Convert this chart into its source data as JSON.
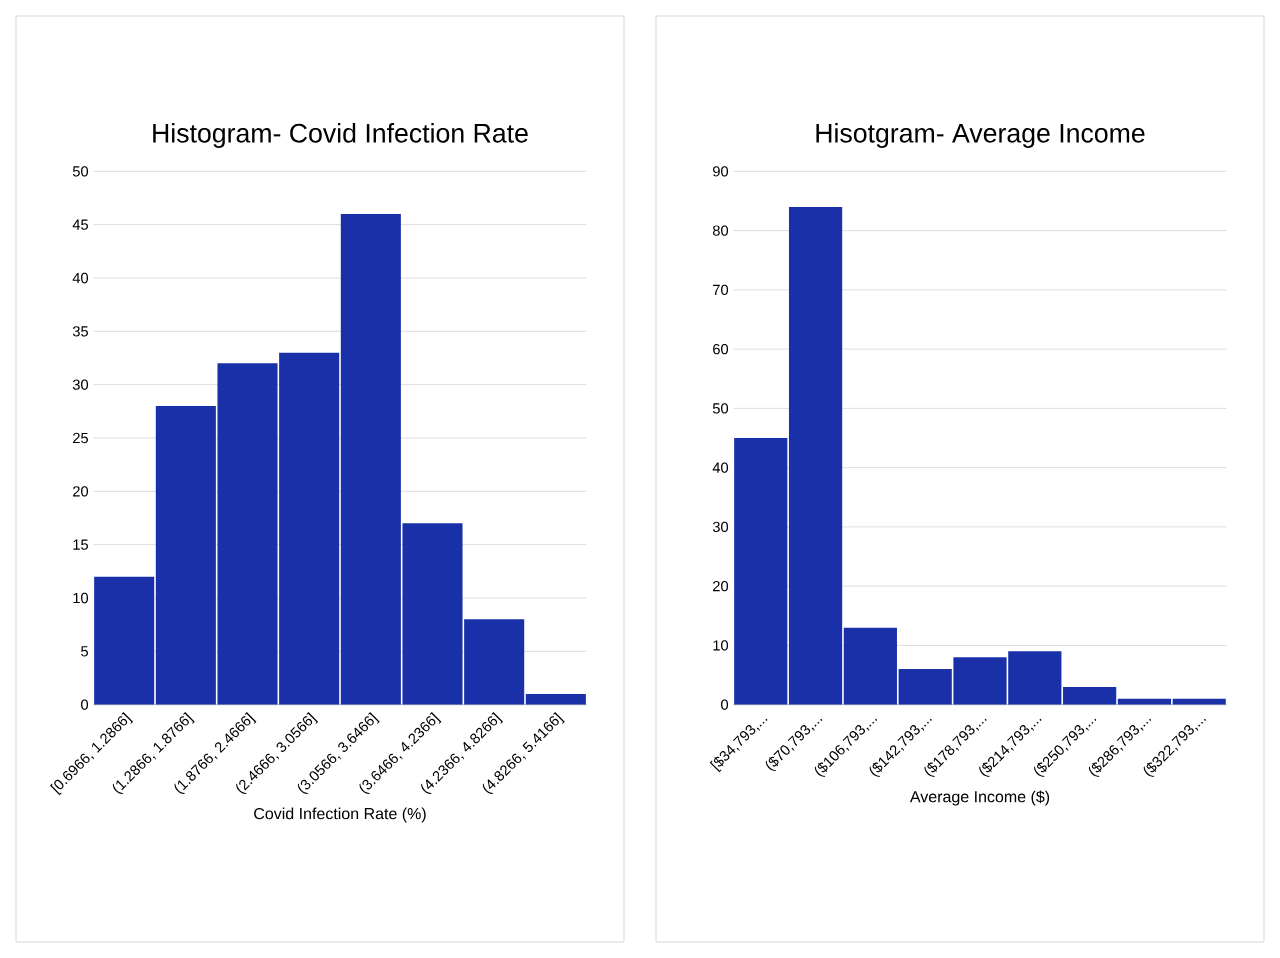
{
  "chart_data": [
    {
      "type": "bar",
      "title": "Histogram- Covid Infection Rate",
      "xlabel": "Covid Infection Rate (%)",
      "categories": [
        "[0.6966, 1.2866]",
        "(1.2866, 1.8766]",
        "(1.8766, 2.4666]",
        "(2.4666, 3.0566]",
        "(3.0566, 3.6466]",
        "(3.6466, 4.2366]",
        "(4.2366, 4.8266]",
        "(4.8266, 5.4166]"
      ],
      "values": [
        12,
        28,
        32,
        33,
        46,
        17,
        8,
        1
      ],
      "color": "#1a30a8",
      "ylim": [
        0,
        50
      ],
      "yticks": [
        0,
        5,
        10,
        15,
        20,
        25,
        30,
        35,
        40,
        45,
        50
      ],
      "grid": "y"
    },
    {
      "type": "bar",
      "title": "Hisotgram- Average Income",
      "xlabel": "Average Income ($)",
      "categories": [
        "[$34,793,...",
        "($70,793,...",
        "($106,793,...",
        "($142,793,...",
        "($178,793,...",
        "($214,793,...",
        "($250,793,...",
        "($286,793,...",
        "($322,793,..."
      ],
      "values": [
        45,
        84,
        13,
        6,
        8,
        9,
        3,
        1,
        1
      ],
      "color": "#1a30a8",
      "ylim": [
        0,
        90
      ],
      "yticks": [
        0,
        10,
        20,
        30,
        40,
        50,
        60,
        70,
        80,
        90
      ],
      "grid": "y"
    }
  ]
}
